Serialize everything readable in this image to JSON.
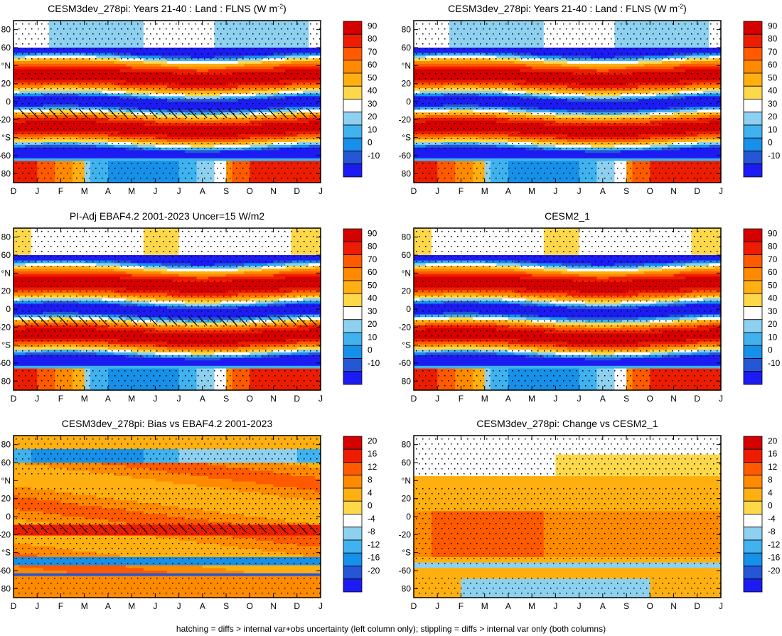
{
  "figure": {
    "footnote": "hatching = diffs > internal var+obs uncertainty (left column only); stippling = diffs > internal var only (both columns)"
  },
  "chart_data": [
    {
      "type": "heatmap",
      "title_main": "CESM3dev_278pi: Years 21-40 : Land : FLNS (W m",
      "title_sup": "-2",
      "title_end": ")",
      "x_ticks": [
        "D",
        "J",
        "F",
        "M",
        "A",
        "M",
        "J",
        "J",
        "A",
        "S",
        "O",
        "N",
        "D",
        "J"
      ],
      "y_ticks": [
        "80",
        "60",
        "°N",
        "20",
        "0",
        "-20",
        "°S",
        "-60",
        "80"
      ],
      "y_values": [
        80,
        60,
        40,
        20,
        0,
        -20,
        -40,
        -60,
        -80
      ],
      "ylim": [
        -90,
        90
      ],
      "colorbar": [
        "90",
        "80",
        "70",
        "60",
        "50",
        "40",
        "30",
        "20",
        "10",
        "0",
        "-10"
      ],
      "colorbar_values": [
        90,
        80,
        70,
        60,
        50,
        40,
        30,
        20,
        10,
        0,
        -10
      ],
      "scale": "abs",
      "hatched": true,
      "variant": "model"
    },
    {
      "type": "heatmap",
      "title_main": "CESM3dev_278pi: Years 21-40 : Land : FLNS (W m",
      "title_sup": "-2",
      "title_end": ")",
      "x_ticks": [
        "D",
        "J",
        "F",
        "M",
        "A",
        "M",
        "J",
        "J",
        "A",
        "S",
        "O",
        "N",
        "D",
        "J"
      ],
      "y_ticks": [
        "80",
        "60",
        "°N",
        "20",
        "0",
        "-20",
        "°S",
        "-60",
        "80"
      ],
      "y_values": [
        80,
        60,
        40,
        20,
        0,
        -20,
        -40,
        -60,
        -80
      ],
      "ylim": [
        -90,
        90
      ],
      "colorbar": [
        "90",
        "80",
        "70",
        "60",
        "50",
        "40",
        "30",
        "20",
        "10",
        "0",
        "-10"
      ],
      "colorbar_values": [
        90,
        80,
        70,
        60,
        50,
        40,
        30,
        20,
        10,
        0,
        -10
      ],
      "scale": "abs",
      "hatched": false,
      "variant": "model"
    },
    {
      "type": "heatmap",
      "title_main": "PI-Adj EBAF4.2 2001-2023 Uncer=15 W/m2",
      "title_sup": "",
      "title_end": "",
      "x_ticks": [
        "D",
        "J",
        "F",
        "M",
        "A",
        "M",
        "J",
        "J",
        "A",
        "S",
        "O",
        "N",
        "D",
        "J"
      ],
      "y_ticks": [
        "80",
        "60",
        "°N",
        "20",
        "0",
        "-20",
        "°S",
        "-60",
        "80"
      ],
      "y_values": [
        80,
        60,
        40,
        20,
        0,
        -20,
        -40,
        -60,
        -80
      ],
      "ylim": [
        -90,
        90
      ],
      "colorbar": [
        "90",
        "80",
        "70",
        "60",
        "50",
        "40",
        "30",
        "20",
        "10",
        "0",
        "-10"
      ],
      "colorbar_values": [
        90,
        80,
        70,
        60,
        50,
        40,
        30,
        20,
        10,
        0,
        -10
      ],
      "scale": "abs",
      "hatched": true,
      "variant": "obs"
    },
    {
      "type": "heatmap",
      "title_main": "CESM2_1",
      "title_sup": "",
      "title_end": "",
      "x_ticks": [
        "D",
        "J",
        "F",
        "M",
        "A",
        "M",
        "J",
        "J",
        "A",
        "S",
        "O",
        "N",
        "D",
        "J"
      ],
      "y_ticks": [
        "80",
        "60",
        "°N",
        "20",
        "0",
        "-20",
        "°S",
        "-60",
        "80"
      ],
      "y_values": [
        80,
        60,
        40,
        20,
        0,
        -20,
        -40,
        -60,
        -80
      ],
      "ylim": [
        -90,
        90
      ],
      "colorbar": [
        "90",
        "80",
        "70",
        "60",
        "50",
        "40",
        "30",
        "20",
        "10",
        "0",
        "-10"
      ],
      "colorbar_values": [
        90,
        80,
        70,
        60,
        50,
        40,
        30,
        20,
        10,
        0,
        -10
      ],
      "scale": "abs",
      "hatched": false,
      "variant": "cesm2"
    },
    {
      "type": "heatmap",
      "title_main": "CESM3dev_278pi: Bias vs EBAF4.2 2001-2023",
      "title_sup": "",
      "title_end": "",
      "x_ticks": [
        "D",
        "J",
        "F",
        "M",
        "A",
        "M",
        "J",
        "J",
        "A",
        "S",
        "O",
        "N",
        "D",
        "J"
      ],
      "y_ticks": [
        "80",
        "60",
        "°N",
        "20",
        "0",
        "-20",
        "°S",
        "-60",
        "80"
      ],
      "y_values": [
        80,
        60,
        40,
        20,
        0,
        -20,
        -40,
        -60,
        -80
      ],
      "ylim": [
        -90,
        90
      ],
      "colorbar": [
        "20",
        "16",
        "12",
        "8",
        "4",
        "0",
        "-4",
        "-8",
        "-12",
        "-16",
        "-20"
      ],
      "colorbar_values": [
        20,
        16,
        12,
        8,
        4,
        0,
        -4,
        -8,
        -12,
        -16,
        -20
      ],
      "scale": "diff",
      "hatched": true,
      "variant": "bias"
    },
    {
      "type": "heatmap",
      "title_main": "CESM3dev_278pi: Change vs CESM2_1",
      "title_sup": "",
      "title_end": "",
      "x_ticks": [
        "D",
        "J",
        "F",
        "M",
        "A",
        "M",
        "J",
        "J",
        "A",
        "S",
        "O",
        "N",
        "D",
        "J"
      ],
      "y_ticks": [
        "80",
        "60",
        "°N",
        "20",
        "0",
        "-20",
        "°S",
        "-60",
        "80"
      ],
      "y_values": [
        80,
        60,
        40,
        20,
        0,
        -20,
        -40,
        -60,
        -80
      ],
      "ylim": [
        -90,
        90
      ],
      "colorbar": [
        "20",
        "16",
        "12",
        "8",
        "4",
        "0",
        "-4",
        "-8",
        "-12",
        "-16",
        "-20"
      ],
      "colorbar_values": [
        20,
        16,
        12,
        8,
        4,
        0,
        -4,
        -8,
        -12,
        -16,
        -20
      ],
      "scale": "diff",
      "hatched": false,
      "variant": "change"
    }
  ]
}
